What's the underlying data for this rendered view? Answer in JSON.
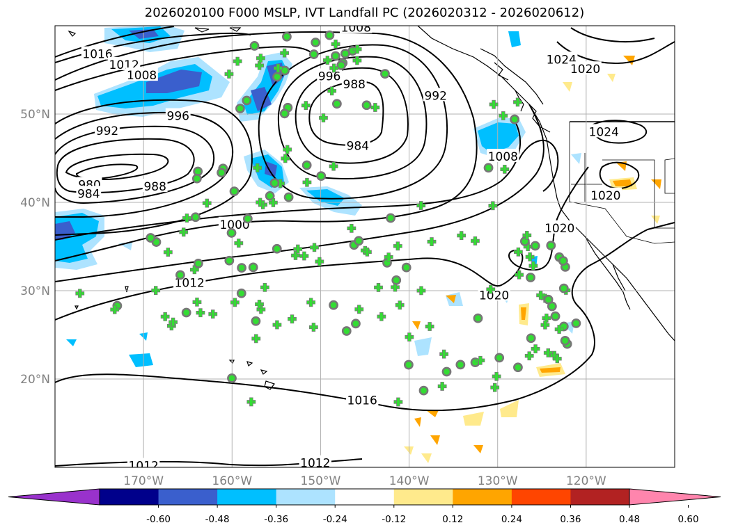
{
  "chart_data": {
    "type": "map",
    "title": "2026020100 F000 MSLP, IVT Landfall PC (2026020312 - 2026020612)",
    "projection": "cylindrical",
    "lon_range": [
      -180,
      -110
    ],
    "lat_range": [
      10,
      60
    ],
    "lon_ticks": [
      -170,
      -160,
      -150,
      -140,
      -130,
      -120
    ],
    "lon_tick_labels": [
      "170°W",
      "160°W",
      "150°W",
      "140°W",
      "130°W",
      "120°W"
    ],
    "lat_ticks": [
      20,
      30,
      40,
      50
    ],
    "lat_tick_labels": [
      "20°N",
      "30°N",
      "40°N",
      "50°N"
    ],
    "grid": true,
    "mslp_contour_labels": [
      {
        "text": "1008",
        "lon": -146,
        "lat": 59.8
      },
      {
        "text": "1016",
        "lon": -175.2,
        "lat": 56.8
      },
      {
        "text": "1012",
        "lon": -172.2,
        "lat": 55.6
      },
      {
        "text": "1008",
        "lon": -170.2,
        "lat": 54.4
      },
      {
        "text": "996",
        "lon": -149,
        "lat": 54.3
      },
      {
        "text": "988",
        "lon": -146.2,
        "lat": 53.4
      },
      {
        "text": "992",
        "lon": -137,
        "lat": 52.1
      },
      {
        "text": "996",
        "lon": -166.1,
        "lat": 49.8
      },
      {
        "text": "992",
        "lon": -174.1,
        "lat": 48.1
      },
      {
        "text": "984",
        "lon": -145.8,
        "lat": 46.4
      },
      {
        "text": "1008",
        "lon": -129.4,
        "lat": 45.2
      },
      {
        "text": "980",
        "lon": -176.1,
        "lat": 42.0
      },
      {
        "text": "984",
        "lon": -176.2,
        "lat": 41.0
      },
      {
        "text": "988",
        "lon": -168.7,
        "lat": 41.8
      },
      {
        "text": "1000",
        "lon": -159.7,
        "lat": 37.5
      },
      {
        "text": "1012",
        "lon": -164.8,
        "lat": 30.9
      },
      {
        "text": "1020",
        "lon": -130.4,
        "lat": 29.5
      },
      {
        "text": "1020",
        "lon": -123,
        "lat": 37.1
      },
      {
        "text": "1024",
        "lon": -122.8,
        "lat": 56.2
      },
      {
        "text": "1020",
        "lon": -120.1,
        "lat": 55.1
      },
      {
        "text": "1024",
        "lon": -118,
        "lat": 48.0
      },
      {
        "text": "1020",
        "lon": -117.8,
        "lat": 40.8
      },
      {
        "text": "1016",
        "lon": -145.3,
        "lat": 17.6
      },
      {
        "text": "1012",
        "lon": -170,
        "lat": 10.2
      },
      {
        "text": "1012",
        "lon": -150.6,
        "lat": 10.5
      }
    ],
    "colorbar": {
      "ticks": [
        "-0.60",
        "-0.48",
        "-0.36",
        "-0.24",
        "-0.12",
        "0.12",
        "0.24",
        "0.36",
        "0.48",
        "0.60"
      ],
      "colors": [
        "#9932CC",
        "#00008B",
        "#3A5FCD",
        "#00BFFF",
        "#ADE3FF",
        "#FFFFFF",
        "#FFEA8C",
        "#FFA500",
        "#FF4500",
        "#B22222",
        "#FF85AD"
      ],
      "extend": "both"
    },
    "markers": {
      "symbol_a": "green plus",
      "symbol_b": "green circle with gray ring",
      "color_plus": "#33DD33",
      "color_circle_fill": "#33DD33",
      "color_circle_ring": "#777777"
    }
  }
}
